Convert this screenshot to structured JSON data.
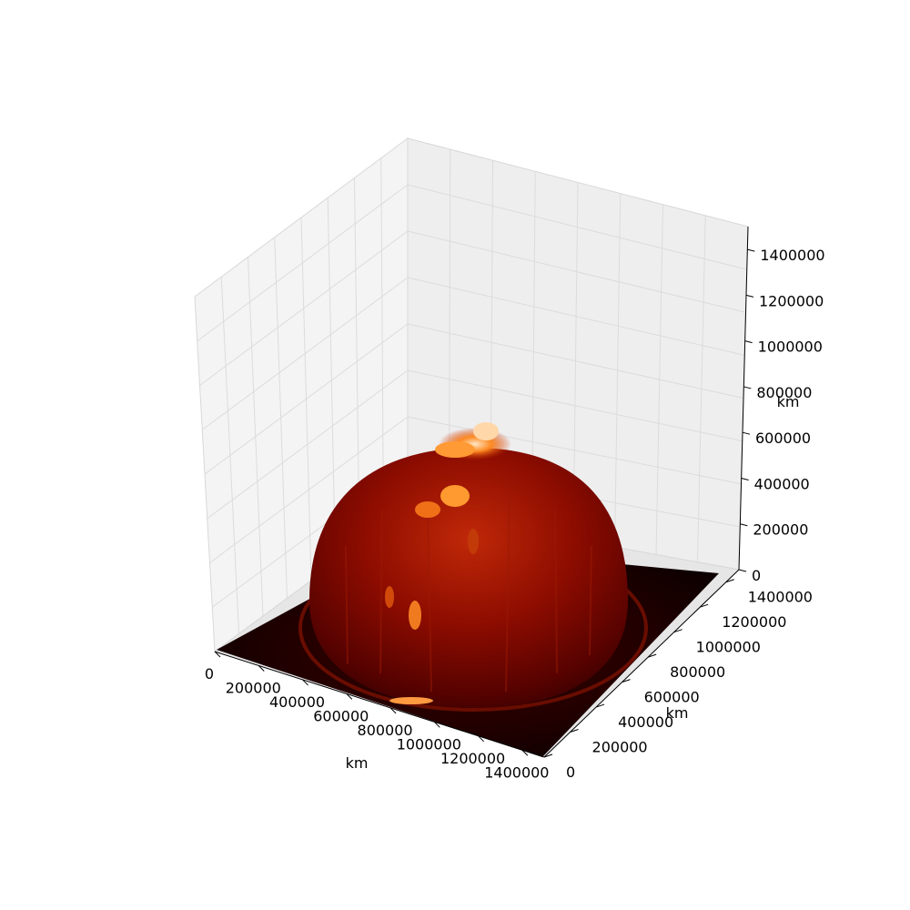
{
  "chart_data": {
    "type": "surface3d",
    "title": "",
    "surface_shape": "hemisphere",
    "colormap": "afmhot-like",
    "colors": {
      "background": "#ffffff",
      "pane": "#f0f0f0",
      "grid": "#e2e2e2",
      "surface_dark": "#1a0000",
      "surface_mid": "#8a0a00",
      "surface_high": "#ff7a1a",
      "surface_top": "#ffe2c0"
    },
    "axes": {
      "x": {
        "label": "km",
        "range": [
          0,
          1500000
        ],
        "ticks": [
          0,
          200000,
          400000,
          600000,
          800000,
          1000000,
          1200000,
          1400000
        ],
        "tick_labels": [
          "0",
          "200000",
          "400000",
          "600000",
          "800000",
          "1000000",
          "1200000",
          "1400000"
        ]
      },
      "y": {
        "label": "km",
        "range": [
          0,
          1500000
        ],
        "ticks": [
          0,
          200000,
          400000,
          600000,
          800000,
          1000000,
          1200000,
          1400000
        ],
        "tick_labels": [
          "0",
          "200000",
          "400000",
          "600000",
          "800000",
          "1000000",
          "1200000",
          "1400000"
        ]
      },
      "z": {
        "label": "km",
        "range": [
          0,
          1500000
        ],
        "ticks": [
          0,
          200000,
          400000,
          600000,
          800000,
          1000000,
          1200000,
          1400000
        ],
        "tick_labels": [
          "0",
          "200000",
          "400000",
          "600000",
          "800000",
          "1000000",
          "1200000",
          "1400000"
        ]
      }
    },
    "surface_center_km": [
      750000,
      750000
    ],
    "surface_radius_km": 600000,
    "surface_peak_km": 700000,
    "grid": true
  }
}
